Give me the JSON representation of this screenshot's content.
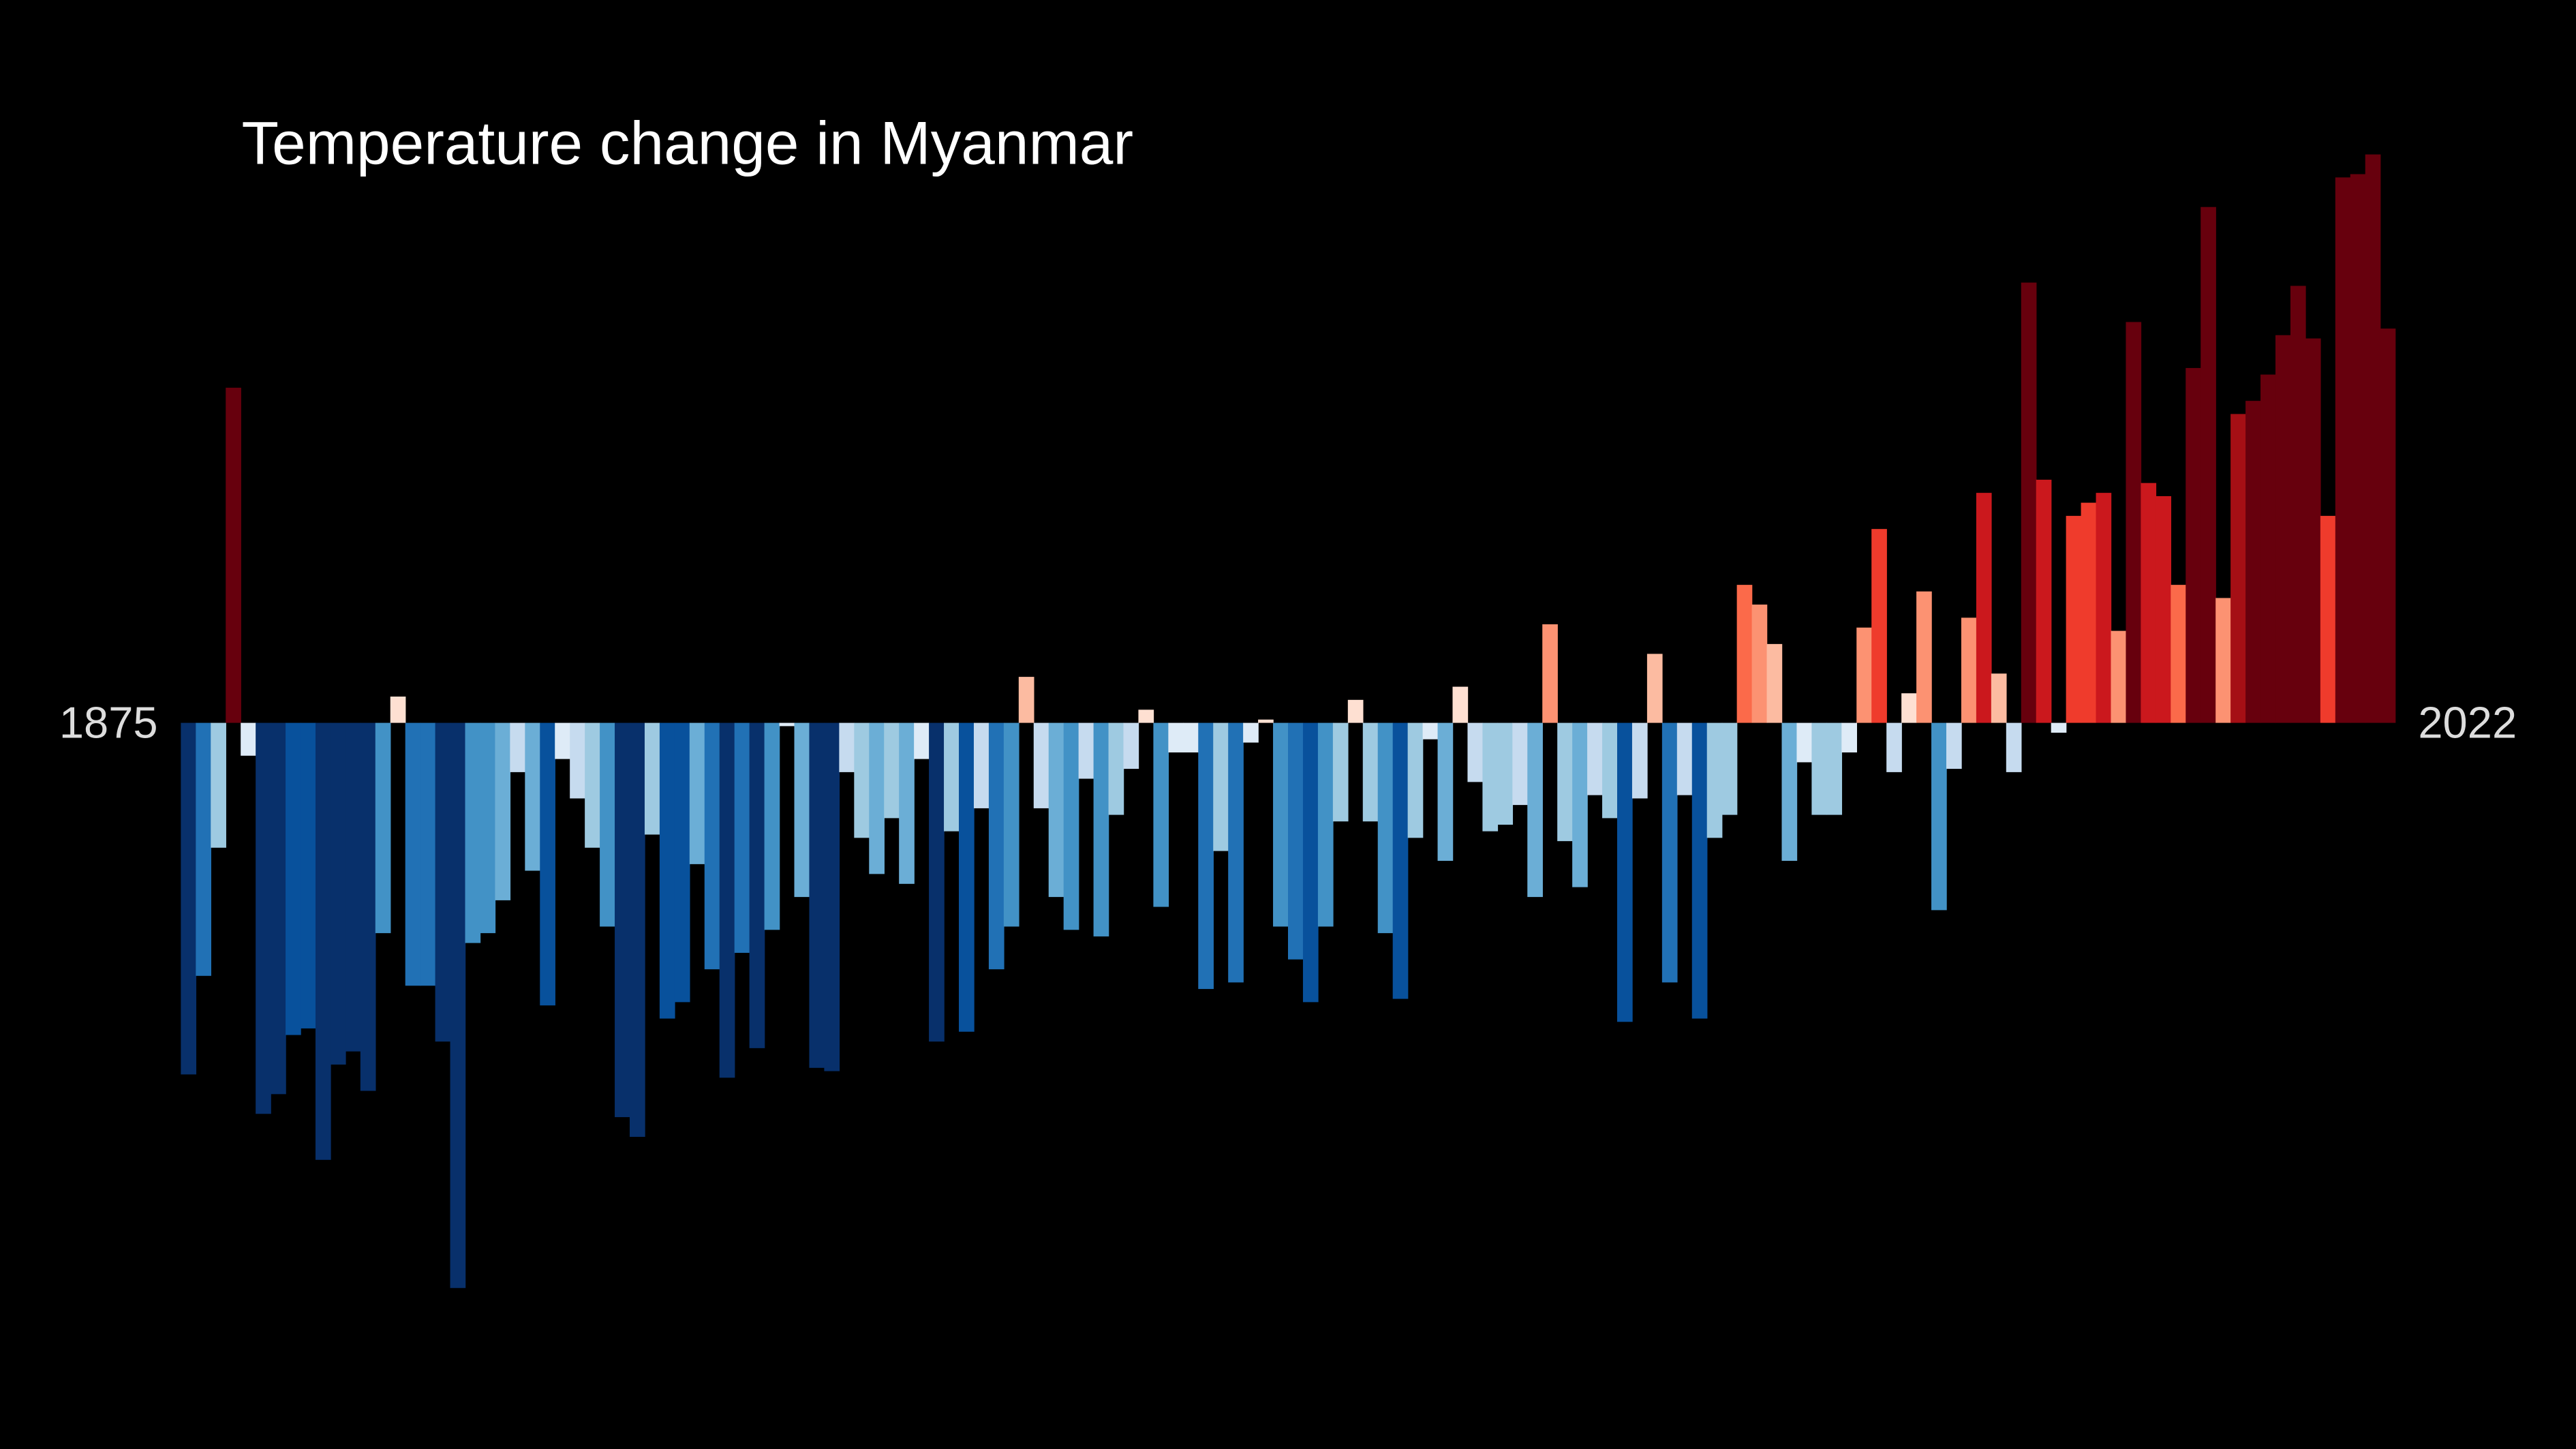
{
  "chart_data": {
    "type": "bar",
    "title": "Temperature change in Myanmar",
    "categories": [
      "1875",
      null,
      null,
      null,
      null,
      null,
      null,
      null,
      null,
      null,
      null,
      null,
      null,
      null,
      null,
      null,
      null,
      null,
      null,
      null,
      null,
      null,
      null,
      null,
      null,
      null,
      null,
      null,
      null,
      null,
      null,
      null,
      null,
      null,
      null,
      null,
      null,
      null,
      null,
      null,
      null,
      null,
      null,
      null,
      null,
      null,
      null,
      null,
      null,
      null,
      null,
      null,
      null,
      null,
      null,
      null,
      null,
      null,
      null,
      null,
      null,
      null,
      null,
      null,
      null,
      null,
      null,
      null,
      null,
      null,
      null,
      null,
      null,
      null,
      null,
      null,
      null,
      null,
      null,
      null,
      null,
      null,
      null,
      null,
      null,
      null,
      null,
      null,
      null,
      null,
      null,
      null,
      null,
      null,
      null,
      null,
      null,
      null,
      null,
      null,
      null,
      null,
      null,
      null,
      null,
      null,
      null,
      null,
      null,
      null,
      null,
      null,
      null,
      null,
      null,
      null,
      null,
      null,
      null,
      null,
      null,
      null,
      null,
      null,
      null,
      null,
      null,
      null,
      null,
      null,
      null,
      null,
      null,
      null,
      null,
      null,
      null,
      null,
      null,
      null,
      null,
      null,
      null,
      null,
      null,
      null,
      null,
      "2022"
    ],
    "values": [
      -1.07,
      -0.77,
      -0.38,
      1.02,
      -0.1,
      -1.19,
      -1.13,
      -0.95,
      -0.93,
      -1.33,
      -1.04,
      -1.0,
      -1.12,
      -0.64,
      0.08,
      -0.8,
      -0.8,
      -0.97,
      -1.72,
      -0.67,
      -0.64,
      -0.54,
      -0.15,
      -0.45,
      -0.86,
      -0.11,
      -0.23,
      -0.38,
      -0.62,
      -1.2,
      -1.26,
      -0.34,
      -0.9,
      -0.85,
      -0.43,
      -0.75,
      -1.08,
      -0.7,
      -0.99,
      -0.63,
      -0.01,
      -0.53,
      -1.05,
      -1.06,
      -0.15,
      -0.35,
      -0.46,
      -0.29,
      -0.49,
      -0.11,
      -0.97,
      -0.33,
      -0.94,
      -0.26,
      -0.75,
      -0.62,
      0.14,
      -0.26,
      -0.53,
      -0.63,
      -0.17,
      -0.65,
      -0.28,
      -0.14,
      0.04,
      -0.56,
      -0.09,
      -0.09,
      -0.81,
      -0.39,
      -0.79,
      -0.06,
      0.01,
      -0.62,
      -0.72,
      -0.85,
      -0.62,
      -0.3,
      0.07,
      -0.3,
      -0.64,
      -0.84,
      -0.35,
      -0.05,
      -0.42,
      0.11,
      -0.18,
      -0.33,
      -0.31,
      -0.25,
      -0.53,
      0.3,
      -0.36,
      -0.5,
      -0.22,
      -0.29,
      -0.91,
      -0.23,
      0.21,
      -0.79,
      -0.22,
      -0.9,
      -0.35,
      -0.28,
      0.42,
      0.36,
      0.24,
      -0.42,
      -0.12,
      -0.28,
      -0.28,
      -0.09,
      0.29,
      0.59,
      -0.15,
      0.09,
      0.4,
      -0.57,
      -0.14,
      0.32,
      0.7,
      0.15,
      -0.15,
      1.34,
      0.74,
      -0.03,
      0.63,
      0.67,
      0.7,
      0.28,
      1.22,
      0.73,
      0.69,
      0.42,
      1.08,
      1.57,
      0.38,
      0.94,
      0.98,
      1.06,
      1.18,
      1.33,
      1.17,
      0.63,
      1.66,
      1.67,
      1.73,
      1.2
    ],
    "ylim": [
      -2.2,
      2.2
    ],
    "colormap": [
      "#08306b",
      "#08519c",
      "#2171b5",
      "#4292c6",
      "#6baed6",
      "#9ecae1",
      "#c6dbef",
      "#deebf7",
      "#fee0d2",
      "#fcbba1",
      "#fc9272",
      "#fb6a4a",
      "#ef3b2c",
      "#cb181d",
      "#a50f15",
      "#67000d"
    ],
    "clim": [
      -1.1,
      1.1
    ]
  }
}
